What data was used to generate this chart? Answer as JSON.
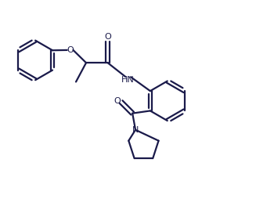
{
  "background_color": "#FFFFFF",
  "line_color": "#1a1a4a",
  "line_width": 1.6,
  "figsize": [
    3.27,
    2.77
  ],
  "dpi": 100,
  "xlim": [
    0,
    10
  ],
  "ylim": [
    0,
    8.5
  ]
}
